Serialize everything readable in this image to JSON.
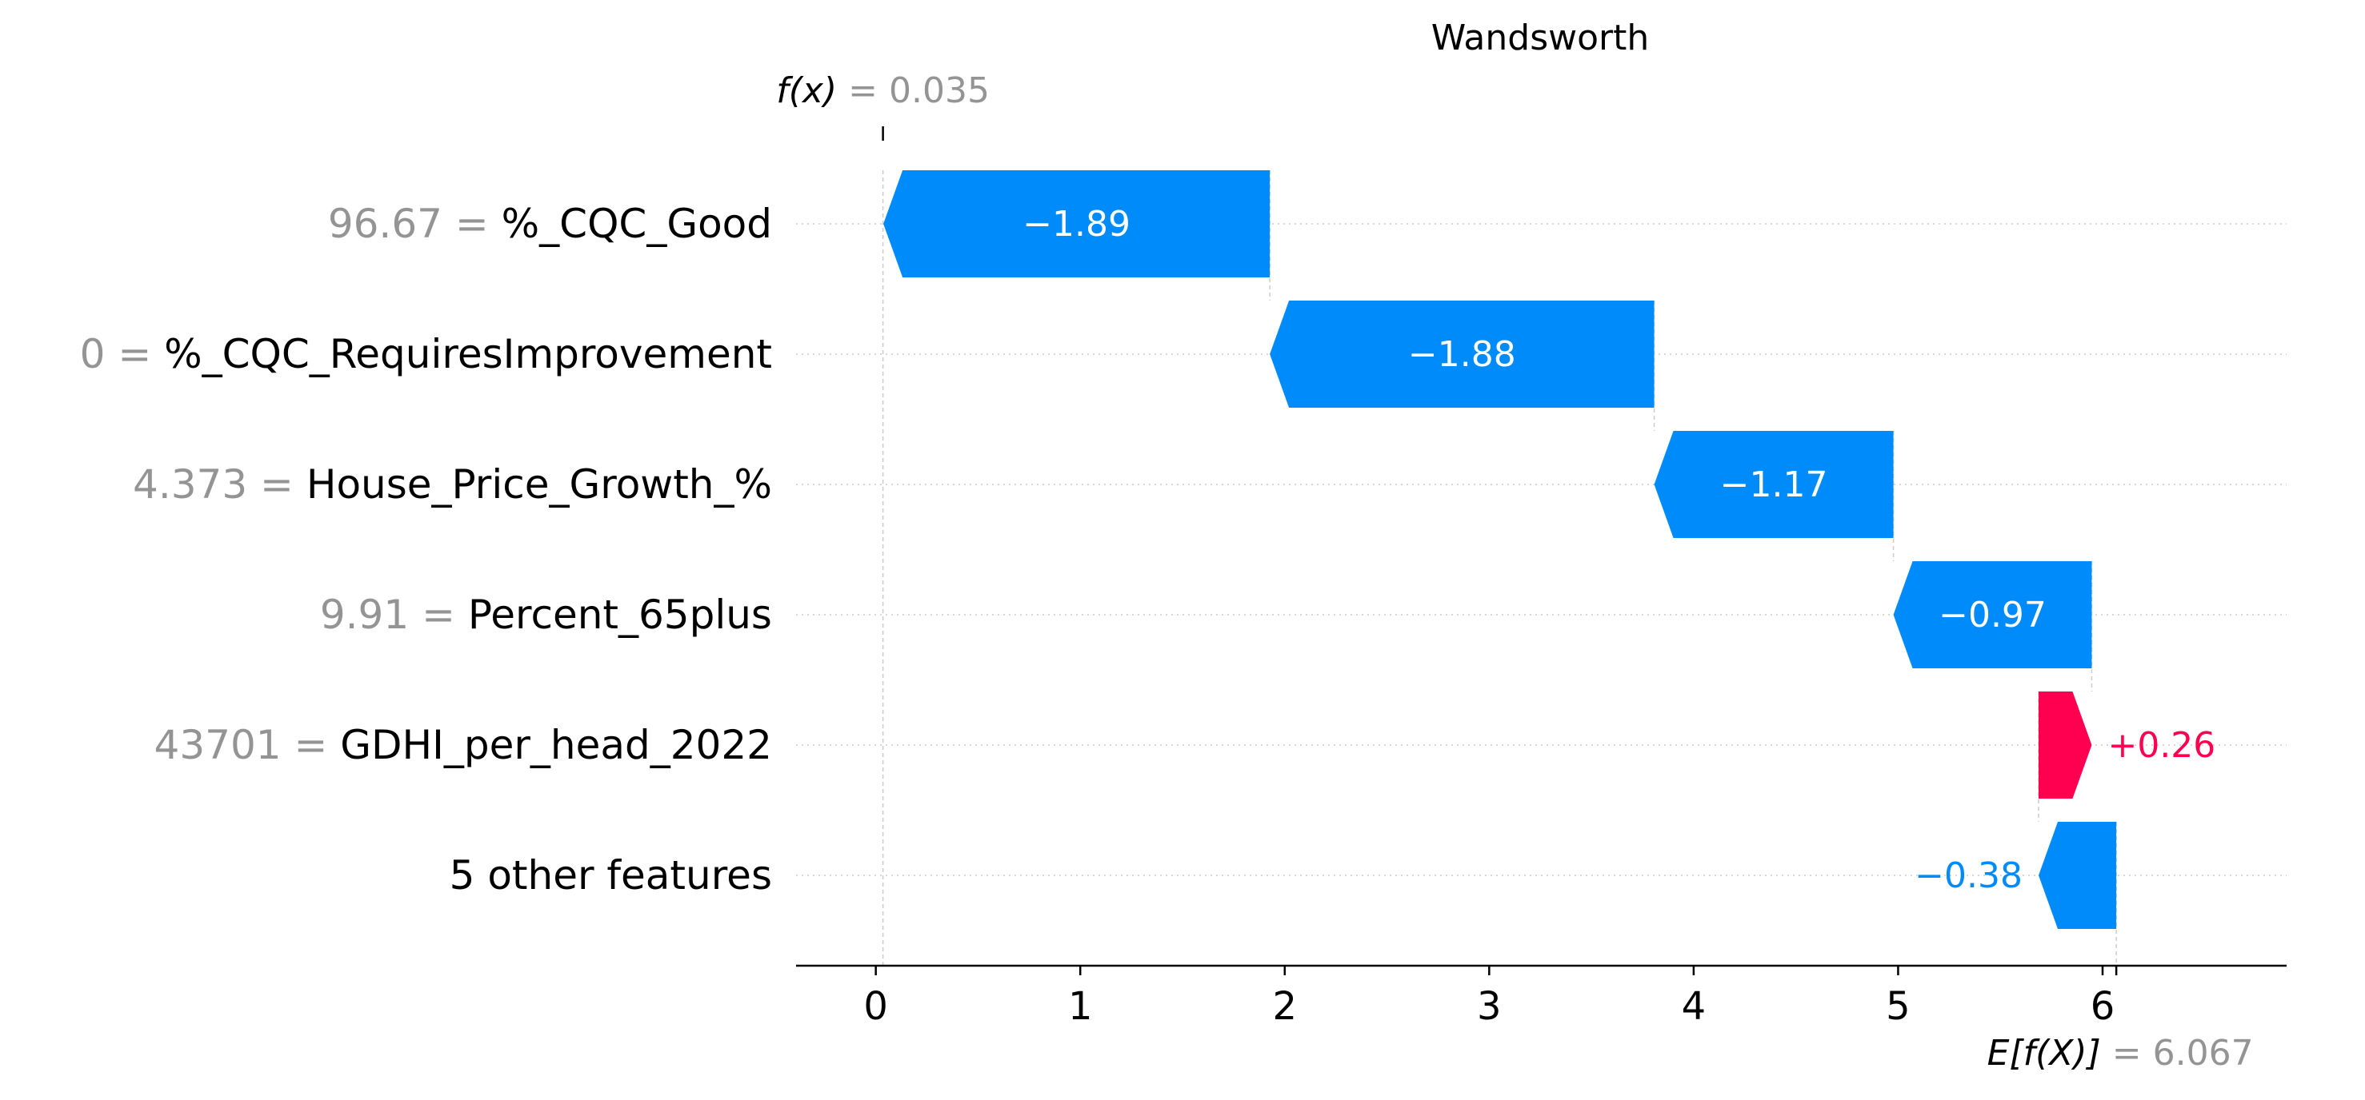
{
  "chart_data": {
    "type": "waterfall",
    "title": "Wandsworth",
    "fx_label": "f(x)",
    "fx_value_text": "= 0.035",
    "fx_value": 0.035,
    "efx_label": "E[f(X)]",
    "efx_value_text": "= 6.067",
    "efx_value": 6.067,
    "xlim": [
      -0.39,
      6.9
    ],
    "xticks": [
      "0",
      "1",
      "2",
      "3",
      "4",
      "5",
      "6"
    ],
    "rows": [
      {
        "value_text": "96.67 =",
        "feature": "%_CQC_Good",
        "shap": -1.89,
        "label": "−1.89"
      },
      {
        "value_text": "0 =",
        "feature": "%_CQC_RequiresImprovement",
        "shap": -1.88,
        "label": "−1.88"
      },
      {
        "value_text": "4.373 =",
        "feature": "House_Price_Growth_%",
        "shap": -1.17,
        "label": "−1.17"
      },
      {
        "value_text": "9.91 =",
        "feature": "Percent_65plus",
        "shap": -0.97,
        "label": "−0.97"
      },
      {
        "value_text": "43701 =",
        "feature": "GDHI_per_head_2022",
        "shap": 0.26,
        "label": "+0.26"
      },
      {
        "value_text": "",
        "feature": "5 other features",
        "shap": -0.38,
        "label": "−0.38"
      }
    ],
    "colors": {
      "negative": "#008bfb",
      "positive": "#ff0051",
      "muted": "#949494",
      "text": "#000000",
      "grid": "#cccccc"
    }
  }
}
